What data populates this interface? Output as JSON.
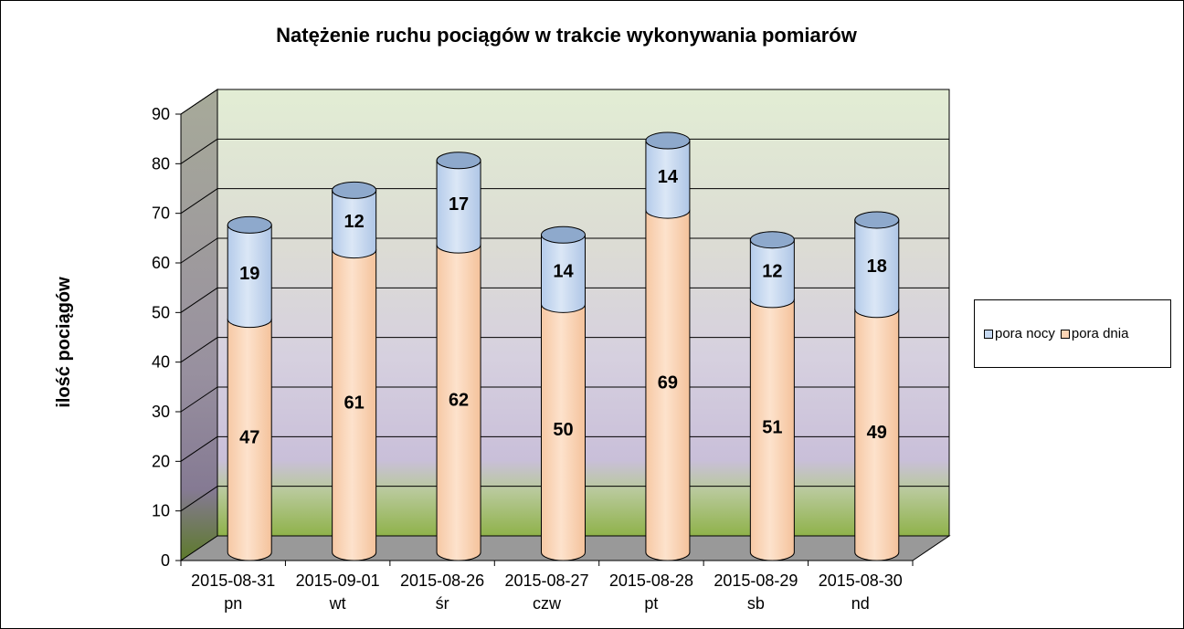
{
  "chart_data": {
    "type": "bar",
    "stacked": true,
    "three_d": true,
    "title": "Natężenie ruchu pociągów w trakcie wykonywania pomiarów",
    "ylabel": "ilość pociągów",
    "ylim": [
      0,
      90
    ],
    "yticks": [
      "0",
      "10",
      "20",
      "30",
      "40",
      "50",
      "60",
      "70",
      "80",
      "90"
    ],
    "categories": [
      {
        "date": "2015-08-31",
        "day": "pn"
      },
      {
        "date": "2015-09-01",
        "day": "wt"
      },
      {
        "date": "2015-08-26",
        "day": "śr"
      },
      {
        "date": "2015-08-27",
        "day": "czw"
      },
      {
        "date": "2015-08-28",
        "day": "pt"
      },
      {
        "date": "2015-08-29",
        "day": "sb"
      },
      {
        "date": "2015-08-30",
        "day": "nd"
      }
    ],
    "series": [
      {
        "name": "pora dnia",
        "color": "#fcd5b5",
        "values": [
          47,
          61,
          62,
          50,
          69,
          51,
          49
        ]
      },
      {
        "name": "pora nocy",
        "color": "#c6d9f1",
        "values": [
          19,
          12,
          17,
          14,
          14,
          12,
          18
        ]
      }
    ],
    "legend_position": "right",
    "grid": true
  }
}
